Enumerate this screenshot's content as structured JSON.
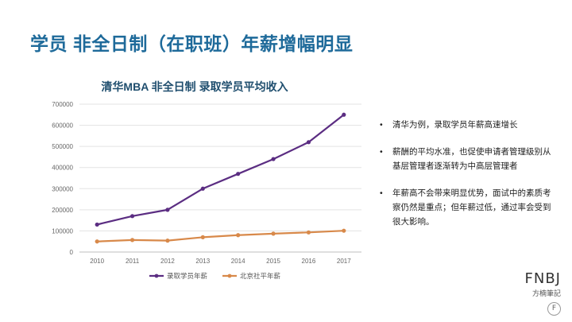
{
  "slide": {
    "title": "学员 非全日制（在职班）年薪增幅明显"
  },
  "chart_data": {
    "type": "line",
    "title": "清华MBA 非全日制 录取学员平均收入",
    "categories": [
      "2010",
      "2011",
      "2012",
      "2013",
      "2014",
      "2015",
      "2016",
      "2017"
    ],
    "y_ticks": [
      "0",
      "100000",
      "200000",
      "300000",
      "400000",
      "500000",
      "600000",
      "700000"
    ],
    "ylim": [
      0,
      700000
    ],
    "grid": true,
    "legend_position": "bottom",
    "series": [
      {
        "name": "录取学员年薪",
        "color": "#5b2d82",
        "values": [
          130000,
          170000,
          200000,
          300000,
          370000,
          440000,
          520000,
          650000
        ]
      },
      {
        "name": "北京社平年薪",
        "color": "#d8894a",
        "values": [
          50000,
          57000,
          54000,
          70000,
          80000,
          87000,
          93000,
          101000
        ]
      }
    ]
  },
  "bullets": [
    "清华为例，录取学员年薪高速增长",
    "薪酬的平均水准，也促使申请者管理级别从基层管理者逐渐转为中高层管理者",
    "年薪高不会带来明显优势，面试中的素质考察仍然是重点；但年薪过低，通过率会受到很大影响。"
  ],
  "bullet_marker": "•",
  "logo": {
    "main": "FNBJ",
    "sub": "方楠筆記",
    "badge": "F"
  }
}
